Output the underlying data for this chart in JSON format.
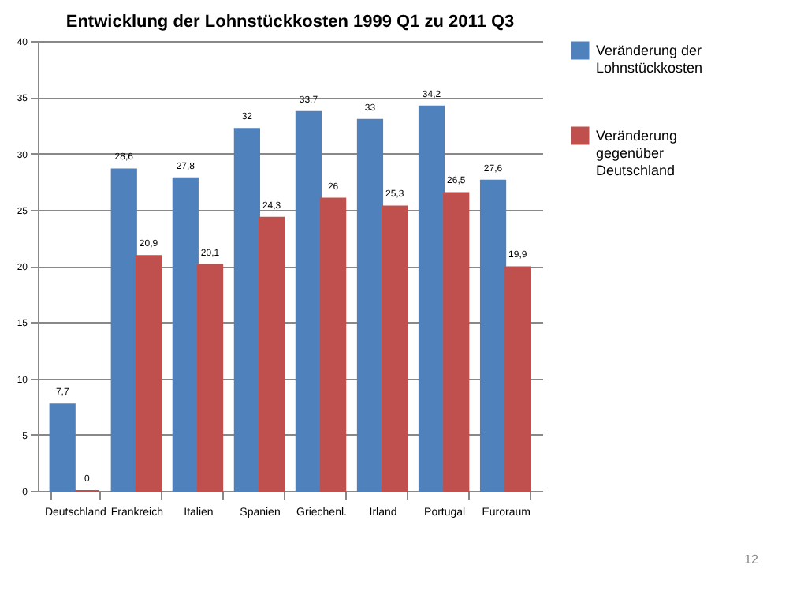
{
  "chart_data": {
    "type": "bar",
    "title": "Entwicklung der Lohnstückkosten 1999 Q1 zu 2011 Q3",
    "categories": [
      "Deutschland",
      "Frankreich",
      "Italien",
      "Spanien",
      "Griechenl.",
      "Irland",
      "Portugal",
      "Euroraum"
    ],
    "series": [
      {
        "name": "Veränderung der Lohnstückkosten",
        "color": "#4f81bd",
        "values": [
          7.7,
          28.6,
          27.8,
          32.2,
          33.7,
          33,
          34.2,
          27.6
        ],
        "value_labels": [
          "7,7",
          "28,6",
          "27,8",
          "32",
          "33,7",
          "33",
          "34,2",
          "27,6"
        ]
      },
      {
        "name": "Veränderung gegenüber Deutschland",
        "color": "#c0504d",
        "values": [
          0,
          20.9,
          20.1,
          24.3,
          26,
          25.3,
          26.5,
          19.9
        ],
        "value_labels": [
          "0",
          "20,9",
          "20,1",
          "24,3",
          "26",
          "25,3",
          "26,5",
          "19,9"
        ]
      }
    ],
    "ylim": [
      0,
      40
    ],
    "yticks": [
      0,
      5,
      10,
      15,
      20,
      25,
      30,
      35,
      40
    ],
    "grid": "y",
    "legend": "right",
    "annotations": [
      "12"
    ]
  }
}
